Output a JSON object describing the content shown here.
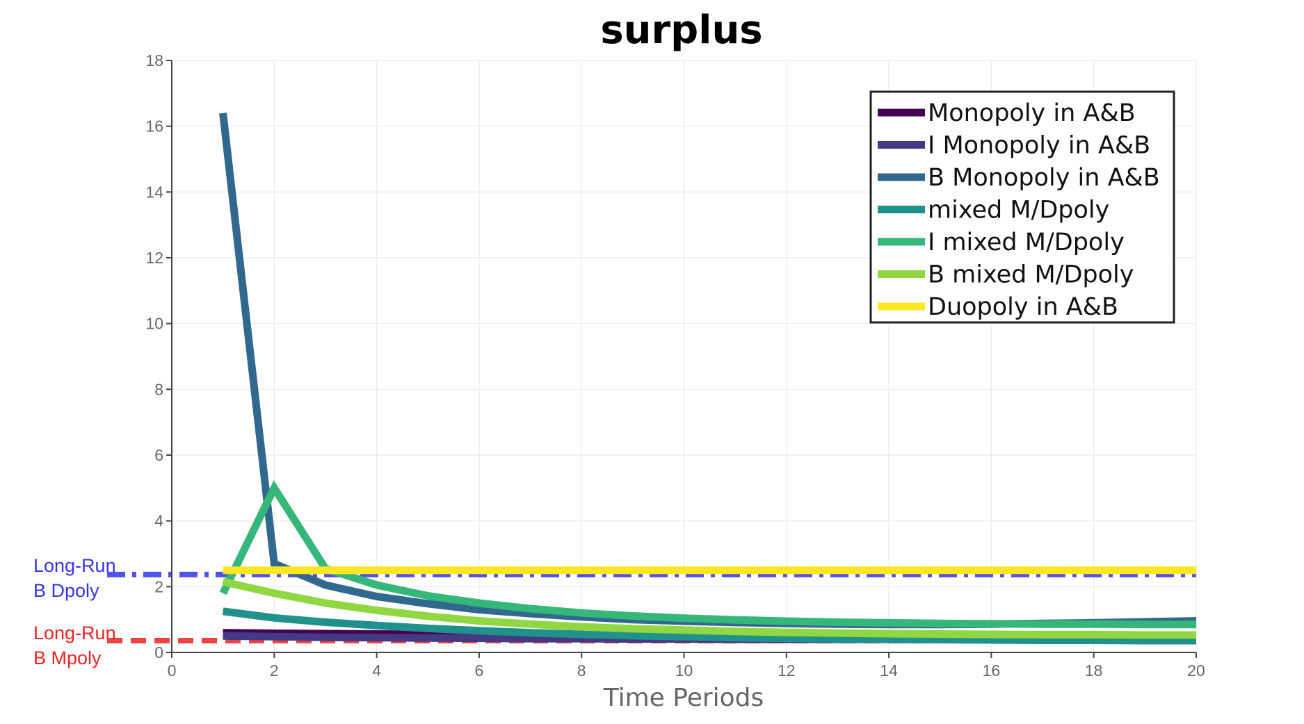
{
  "chart_data": {
    "type": "line",
    "title": "surplus",
    "xlabel": "Time Periods",
    "ylabel": "",
    "xlim": [
      0,
      20
    ],
    "ylim": [
      0,
      18
    ],
    "xticks": [
      0,
      2,
      4,
      6,
      8,
      10,
      12,
      14,
      16,
      18,
      20
    ],
    "yticks": [
      0,
      2,
      4,
      6,
      8,
      10,
      12,
      14,
      16,
      18
    ],
    "grid": true,
    "legend_position": "top-right",
    "x": [
      1,
      2,
      3,
      4,
      5,
      6,
      7,
      8,
      9,
      10,
      11,
      12,
      13,
      14,
      15,
      16,
      17,
      18,
      19,
      20
    ],
    "series": [
      {
        "name": "Monopoly in A&B",
        "color": "#440154",
        "values": [
          0.6,
          0.58,
          0.57,
          0.56,
          0.55,
          0.55,
          0.54,
          0.54,
          0.53,
          0.53,
          0.53,
          0.52,
          0.52,
          0.52,
          0.52,
          0.51,
          0.51,
          0.51,
          0.51,
          0.51
        ]
      },
      {
        "name": "I Monopoly in A&B",
        "color": "#443983",
        "values": [
          0.5,
          0.48,
          0.46,
          0.45,
          0.44,
          0.43,
          0.42,
          0.42,
          0.41,
          0.41,
          0.4,
          0.4,
          0.4,
          0.4,
          0.39,
          0.39,
          0.39,
          0.39,
          0.39,
          0.39
        ]
      },
      {
        "name": "B Monopoly in A&B",
        "color": "#31688e",
        "values": [
          16.4,
          2.7,
          2.05,
          1.7,
          1.48,
          1.3,
          1.18,
          1.08,
          1.0,
          0.95,
          0.91,
          0.88,
          0.86,
          0.85,
          0.85,
          0.86,
          0.88,
          0.9,
          0.93,
          0.96
        ]
      },
      {
        "name": "mixed M/Dpoly",
        "color": "#21918c",
        "values": [
          1.25,
          1.05,
          0.92,
          0.82,
          0.73,
          0.66,
          0.6,
          0.55,
          0.51,
          0.48,
          0.45,
          0.43,
          0.41,
          0.4,
          0.39,
          0.38,
          0.37,
          0.37,
          0.36,
          0.36
        ]
      },
      {
        "name": "I mixed M/Dpoly",
        "color": "#35b779",
        "values": [
          1.8,
          5.0,
          2.55,
          2.05,
          1.72,
          1.5,
          1.33,
          1.2,
          1.11,
          1.04,
          0.99,
          0.95,
          0.92,
          0.9,
          0.88,
          0.87,
          0.86,
          0.86,
          0.85,
          0.85
        ]
      },
      {
        "name": "B mixed M/Dpoly",
        "color": "#90d743",
        "values": [
          2.15,
          1.8,
          1.5,
          1.28,
          1.1,
          0.96,
          0.86,
          0.78,
          0.72,
          0.68,
          0.64,
          0.61,
          0.59,
          0.57,
          0.56,
          0.55,
          0.54,
          0.54,
          0.53,
          0.53
        ]
      },
      {
        "name": "Duopoly in A&B",
        "color": "#fde725",
        "values": [
          2.5,
          2.5,
          2.5,
          2.5,
          2.5,
          2.5,
          2.5,
          2.5,
          2.5,
          2.5,
          2.5,
          2.5,
          2.5,
          2.5,
          2.5,
          2.5,
          2.5,
          2.5,
          2.5,
          2.5
        ]
      }
    ],
    "reference_lines": [
      {
        "label_line1": "Long-Run",
        "label_line2": "B Dpoly",
        "value": 2.37,
        "color": "#3333ee",
        "style": "dashdot"
      },
      {
        "label_line1": "Long-Run",
        "label_line2": "B Mpoly",
        "value": 0.36,
        "color": "#ee2222",
        "style": "dash"
      }
    ]
  }
}
